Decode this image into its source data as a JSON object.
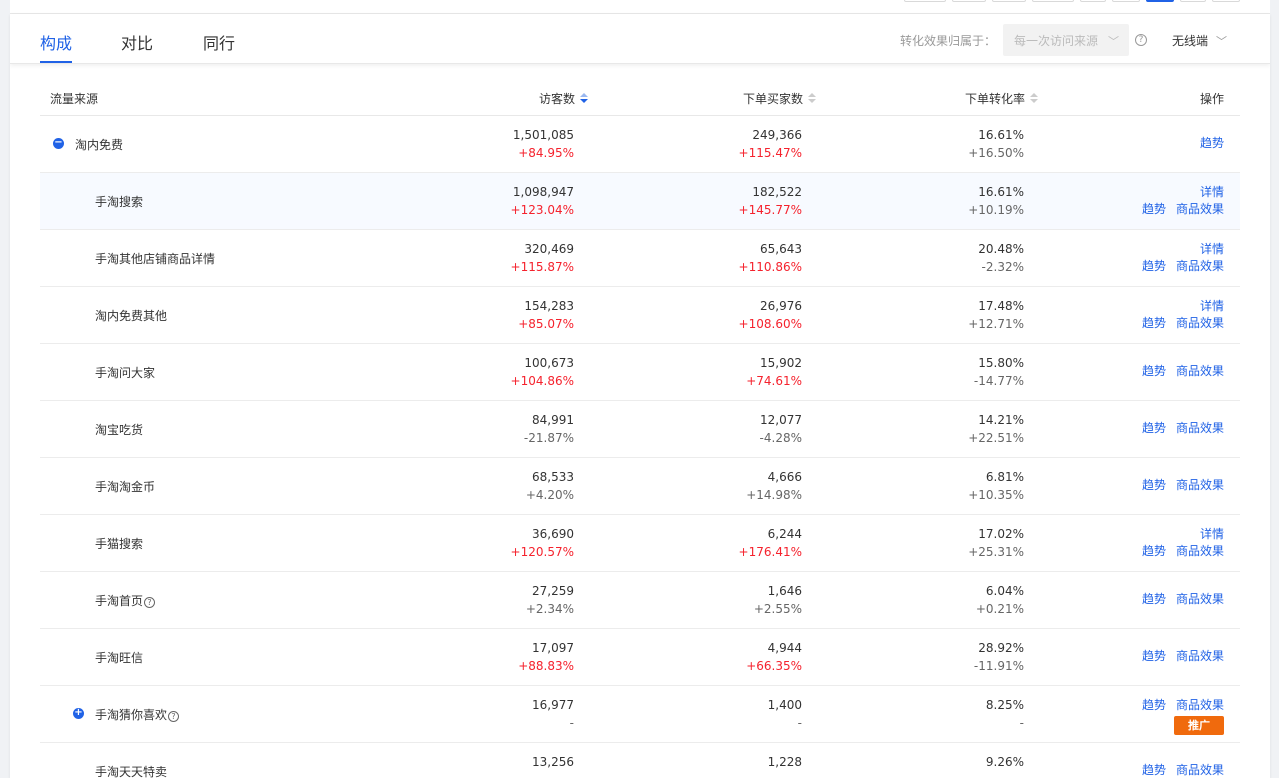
{
  "tabs": [
    {
      "label": "构成",
      "active": true
    },
    {
      "label": "对比",
      "active": false
    },
    {
      "label": "同行",
      "active": false
    }
  ],
  "attribution": {
    "label": "转化效果归属于：",
    "value": "每一次访问来源"
  },
  "device": {
    "value": "无线端"
  },
  "columns": {
    "source": "流量来源",
    "visitors": "访客数",
    "buyers": "下单买家数",
    "rate": "下单转化率",
    "ops": "操作"
  },
  "actions": {
    "trend": "趋势",
    "detail": "详情",
    "goods": "商品效果",
    "promote": "推广"
  },
  "rows": [
    {
      "name": "淘内免费",
      "visitors": "1,501,085",
      "visitors_delta": "+84.95%",
      "visitors_up": true,
      "buyers": "249,366",
      "buyers_delta": "+115.47%",
      "buyers_up": true,
      "rate": "16.61%",
      "rate_delta": "+16.50%",
      "level": 0,
      "toggle": "minus",
      "ops": [
        "trend"
      ],
      "help": false
    },
    {
      "name": "手淘搜索",
      "visitors": "1,098,947",
      "visitors_delta": "+123.04%",
      "visitors_up": true,
      "buyers": "182,522",
      "buyers_delta": "+145.77%",
      "buyers_up": true,
      "rate": "16.61%",
      "rate_delta": "+10.19%",
      "level": 1,
      "ops": [
        "detail",
        "trend",
        "goods"
      ],
      "help": false,
      "highlight": true
    },
    {
      "name": "手淘其他店铺商品详情",
      "visitors": "320,469",
      "visitors_delta": "+115.87%",
      "visitors_up": true,
      "buyers": "65,643",
      "buyers_delta": "+110.86%",
      "buyers_up": true,
      "rate": "20.48%",
      "rate_delta": "-2.32%",
      "level": 1,
      "ops": [
        "detail",
        "trend",
        "goods"
      ],
      "help": false
    },
    {
      "name": "淘内免费其他",
      "visitors": "154,283",
      "visitors_delta": "+85.07%",
      "visitors_up": true,
      "buyers": "26,976",
      "buyers_delta": "+108.60%",
      "buyers_up": true,
      "rate": "17.48%",
      "rate_delta": "+12.71%",
      "level": 1,
      "ops": [
        "detail",
        "trend",
        "goods"
      ],
      "help": false
    },
    {
      "name": "手淘问大家",
      "visitors": "100,673",
      "visitors_delta": "+104.86%",
      "visitors_up": true,
      "buyers": "15,902",
      "buyers_delta": "+74.61%",
      "buyers_up": true,
      "rate": "15.80%",
      "rate_delta": "-14.77%",
      "level": 1,
      "ops": [
        "trend",
        "goods"
      ],
      "help": false
    },
    {
      "name": "淘宝吃货",
      "visitors": "84,991",
      "visitors_delta": "-21.87%",
      "visitors_up": false,
      "buyers": "12,077",
      "buyers_delta": "-4.28%",
      "buyers_up": false,
      "rate": "14.21%",
      "rate_delta": "+22.51%",
      "level": 1,
      "ops": [
        "trend",
        "goods"
      ],
      "help": false
    },
    {
      "name": "手淘淘金币",
      "visitors": "68,533",
      "visitors_delta": "+4.20%",
      "visitors_up": false,
      "buyers": "4,666",
      "buyers_delta": "+14.98%",
      "buyers_up": false,
      "rate": "6.81%",
      "rate_delta": "+10.35%",
      "level": 1,
      "ops": [
        "trend",
        "goods"
      ],
      "help": false
    },
    {
      "name": "手猫搜索",
      "visitors": "36,690",
      "visitors_delta": "+120.57%",
      "visitors_up": true,
      "buyers": "6,244",
      "buyers_delta": "+176.41%",
      "buyers_up": true,
      "rate": "17.02%",
      "rate_delta": "+25.31%",
      "level": 1,
      "ops": [
        "detail",
        "trend",
        "goods"
      ],
      "help": false
    },
    {
      "name": "手淘首页",
      "visitors": "27,259",
      "visitors_delta": "+2.34%",
      "visitors_up": false,
      "buyers": "1,646",
      "buyers_delta": "+2.55%",
      "buyers_up": false,
      "rate": "6.04%",
      "rate_delta": "+0.21%",
      "level": 1,
      "ops": [
        "trend",
        "goods"
      ],
      "help": true
    },
    {
      "name": "手淘旺信",
      "visitors": "17,097",
      "visitors_delta": "+88.83%",
      "visitors_up": true,
      "buyers": "4,944",
      "buyers_delta": "+66.35%",
      "buyers_up": true,
      "rate": "28.92%",
      "rate_delta": "-11.91%",
      "level": 1,
      "ops": [
        "trend",
        "goods"
      ],
      "help": false
    },
    {
      "name": "手淘猜你喜欢",
      "visitors": "16,977",
      "visitors_delta": "-",
      "visitors_up": false,
      "buyers": "1,400",
      "buyers_delta": "-",
      "buyers_up": false,
      "rate": "8.25%",
      "rate_delta": "-",
      "level": 1,
      "toggle": "plus",
      "ops": [
        "trend",
        "goods",
        "promote"
      ],
      "help": true
    },
    {
      "name": "手淘天天特卖",
      "visitors": "13,256",
      "visitors_delta": "",
      "visitors_up": false,
      "buyers": "1,228",
      "buyers_delta": "",
      "buyers_up": false,
      "rate": "9.26%",
      "rate_delta": "",
      "level": 1,
      "ops": [
        "trend",
        "goods"
      ],
      "help": false
    }
  ]
}
